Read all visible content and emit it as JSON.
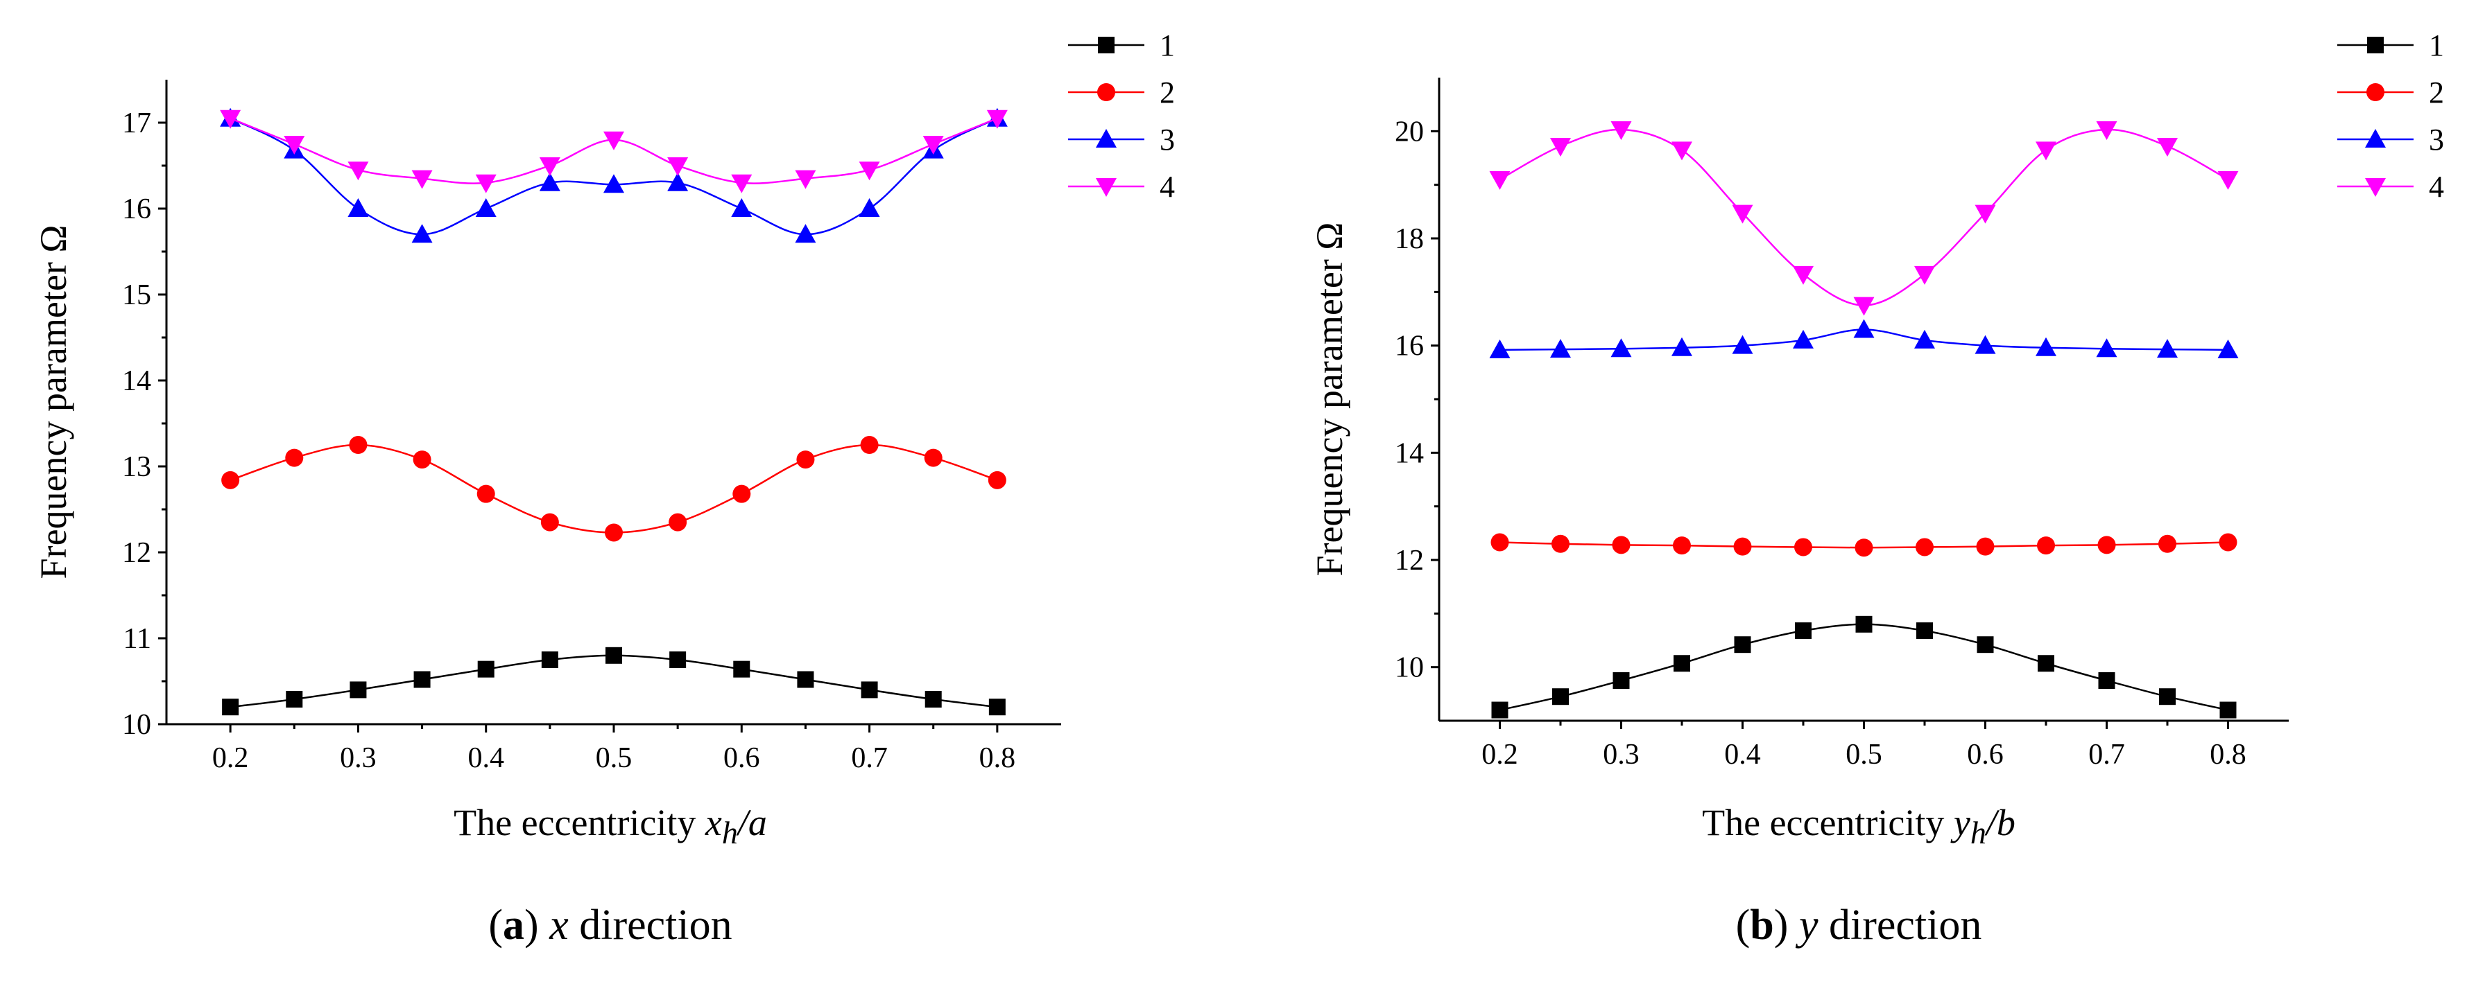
{
  "chart_data": [
    {
      "type": "line",
      "id": "a",
      "caption_prefix": "(",
      "caption_letter": "a",
      "caption_mid": ") ",
      "caption_var": "x",
      "caption_rest": " direction",
      "xlabel_text": "The eccentricity ",
      "xlabel_var": "x",
      "xlabel_sub": "h",
      "xlabel_tail": "/a",
      "ylabel": "Frequency parameter Ω",
      "xlim": [
        0.15,
        0.85
      ],
      "ylim": [
        10,
        17.5
      ],
      "xticks": [
        0.2,
        0.3,
        0.4,
        0.5,
        0.6,
        0.7,
        0.8
      ],
      "xtick_labels": [
        "0.2",
        "0.3",
        "0.4",
        "0.5",
        "0.6",
        "0.7",
        "0.8"
      ],
      "yticks": [
        10,
        11,
        12,
        13,
        14,
        15,
        16,
        17
      ],
      "ytick_labels": [
        "10",
        "11",
        "12",
        "13",
        "14",
        "15",
        "16",
        "17"
      ],
      "x": [
        0.2,
        0.25,
        0.3,
        0.35,
        0.4,
        0.45,
        0.5,
        0.55,
        0.6,
        0.65,
        0.7,
        0.75,
        0.8
      ],
      "series": [
        {
          "name": "1",
          "color": "#000000",
          "marker": "square",
          "values": [
            10.2,
            10.29,
            10.4,
            10.52,
            10.64,
            10.75,
            10.8,
            10.75,
            10.64,
            10.52,
            10.4,
            10.29,
            10.2
          ]
        },
        {
          "name": "2",
          "color": "#ff0000",
          "marker": "circle",
          "values": [
            12.84,
            13.1,
            13.25,
            13.08,
            12.68,
            12.35,
            12.23,
            12.35,
            12.68,
            13.08,
            13.25,
            13.1,
            12.84
          ]
        },
        {
          "name": "3",
          "color": "#0000ff",
          "marker": "triangle-up",
          "values": [
            17.05,
            16.68,
            16.0,
            15.7,
            16.0,
            16.3,
            16.28,
            16.3,
            16.0,
            15.7,
            16.0,
            16.68,
            17.05
          ]
        },
        {
          "name": "4",
          "color": "#ff00ff",
          "marker": "triangle-down",
          "values": [
            17.05,
            16.75,
            16.45,
            16.35,
            16.3,
            16.5,
            16.8,
            16.5,
            16.3,
            16.35,
            16.45,
            16.75,
            17.05
          ]
        }
      ]
    },
    {
      "type": "line",
      "id": "b",
      "caption_prefix": "(",
      "caption_letter": "b",
      "caption_mid": ") ",
      "caption_var": "y",
      "caption_rest": " direction",
      "xlabel_text": "The eccentricity ",
      "xlabel_var": "y",
      "xlabel_sub": "h",
      "xlabel_tail": "/b",
      "ylabel": "Frequency parameter Ω",
      "xlim": [
        0.15,
        0.85
      ],
      "ylim": [
        9,
        21
      ],
      "xticks": [
        0.2,
        0.3,
        0.4,
        0.5,
        0.6,
        0.7,
        0.8
      ],
      "xtick_labels": [
        "0.2",
        "0.3",
        "0.4",
        "0.5",
        "0.6",
        "0.7",
        "0.8"
      ],
      "yticks": [
        10,
        12,
        14,
        16,
        18,
        20
      ],
      "ytick_labels": [
        "10",
        "12",
        "14",
        "16",
        "18",
        "20"
      ],
      "x": [
        0.2,
        0.25,
        0.3,
        0.35,
        0.4,
        0.45,
        0.5,
        0.55,
        0.6,
        0.65,
        0.7,
        0.75,
        0.8
      ],
      "series": [
        {
          "name": "1",
          "color": "#000000",
          "marker": "square",
          "values": [
            9.2,
            9.45,
            9.75,
            10.07,
            10.42,
            10.68,
            10.8,
            10.68,
            10.42,
            10.07,
            9.75,
            9.45,
            9.2
          ]
        },
        {
          "name": "2",
          "color": "#ff0000",
          "marker": "circle",
          "values": [
            12.33,
            12.3,
            12.28,
            12.27,
            12.25,
            12.24,
            12.23,
            12.24,
            12.25,
            12.27,
            12.28,
            12.3,
            12.33
          ]
        },
        {
          "name": "3",
          "color": "#0000ff",
          "marker": "triangle-up",
          "values": [
            15.92,
            15.93,
            15.94,
            15.96,
            16.0,
            16.1,
            16.3,
            16.1,
            16.0,
            15.96,
            15.94,
            15.93,
            15.92
          ]
        },
        {
          "name": "4",
          "color": "#ff00ff",
          "marker": "triangle-down",
          "values": [
            19.1,
            19.72,
            20.03,
            19.65,
            18.47,
            17.33,
            16.75,
            17.33,
            18.47,
            19.65,
            20.03,
            19.72,
            19.1
          ]
        }
      ]
    }
  ]
}
